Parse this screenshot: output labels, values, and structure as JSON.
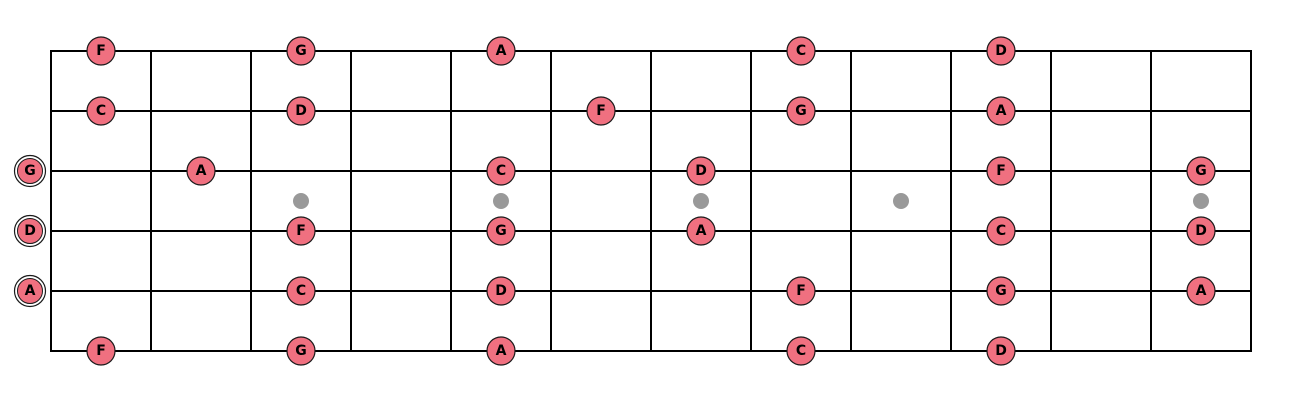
{
  "diagram": {
    "type": "guitar-fretboard",
    "strings": 6,
    "frets": 12,
    "colors": {
      "note_fill": "#f07080",
      "note_stroke": "#1a1a1a",
      "line": "#000000",
      "inlay": "#999999",
      "background": "#ffffff"
    },
    "inlay_frets": [
      3,
      5,
      7,
      9,
      12
    ],
    "open_notes": [
      {
        "string": 3,
        "label": "G"
      },
      {
        "string": 4,
        "label": "D"
      },
      {
        "string": 5,
        "label": "A"
      }
    ],
    "notes": [
      {
        "string": 1,
        "fret": 1,
        "label": "F"
      },
      {
        "string": 1,
        "fret": 3,
        "label": "G"
      },
      {
        "string": 1,
        "fret": 5,
        "label": "A"
      },
      {
        "string": 1,
        "fret": 8,
        "label": "C"
      },
      {
        "string": 1,
        "fret": 10,
        "label": "D"
      },
      {
        "string": 2,
        "fret": 1,
        "label": "C"
      },
      {
        "string": 2,
        "fret": 3,
        "label": "D"
      },
      {
        "string": 2,
        "fret": 6,
        "label": "F"
      },
      {
        "string": 2,
        "fret": 8,
        "label": "G"
      },
      {
        "string": 2,
        "fret": 10,
        "label": "A"
      },
      {
        "string": 3,
        "fret": 2,
        "label": "A"
      },
      {
        "string": 3,
        "fret": 5,
        "label": "C"
      },
      {
        "string": 3,
        "fret": 7,
        "label": "D"
      },
      {
        "string": 3,
        "fret": 10,
        "label": "F"
      },
      {
        "string": 3,
        "fret": 12,
        "label": "G"
      },
      {
        "string": 4,
        "fret": 3,
        "label": "F"
      },
      {
        "string": 4,
        "fret": 5,
        "label": "G"
      },
      {
        "string": 4,
        "fret": 7,
        "label": "A"
      },
      {
        "string": 4,
        "fret": 10,
        "label": "C"
      },
      {
        "string": 4,
        "fret": 12,
        "label": "D"
      },
      {
        "string": 5,
        "fret": 3,
        "label": "C"
      },
      {
        "string": 5,
        "fret": 5,
        "label": "D"
      },
      {
        "string": 5,
        "fret": 8,
        "label": "F"
      },
      {
        "string": 5,
        "fret": 10,
        "label": "G"
      },
      {
        "string": 5,
        "fret": 12,
        "label": "A"
      },
      {
        "string": 6,
        "fret": 1,
        "label": "F"
      },
      {
        "string": 6,
        "fret": 3,
        "label": "G"
      },
      {
        "string": 6,
        "fret": 5,
        "label": "A"
      },
      {
        "string": 6,
        "fret": 8,
        "label": "C"
      },
      {
        "string": 6,
        "fret": 10,
        "label": "D"
      }
    ]
  }
}
